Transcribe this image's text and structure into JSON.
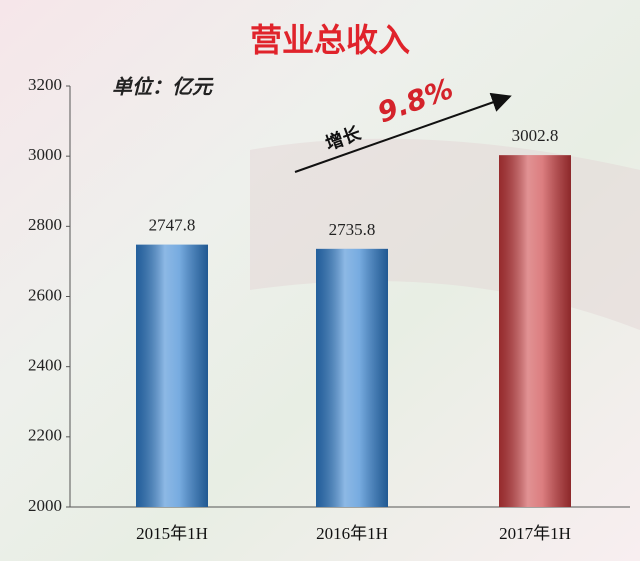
{
  "chart_data": {
    "type": "bar",
    "title": "营业总收入",
    "unit_note": "单位：亿元",
    "annotation_label": "增长",
    "annotation_value": "9.8%",
    "categories": [
      "2015年1H",
      "2016年1H",
      "2017年1H"
    ],
    "values": [
      2747.8,
      2735.8,
      3002.8
    ],
    "colors": [
      "#2f7fd0",
      "#2f7fd0",
      "#c9393c"
    ],
    "ylim": [
      2000,
      3200
    ],
    "yticks": [
      2000,
      2200,
      2400,
      2600,
      2800,
      3000,
      3200
    ],
    "grid": false
  }
}
